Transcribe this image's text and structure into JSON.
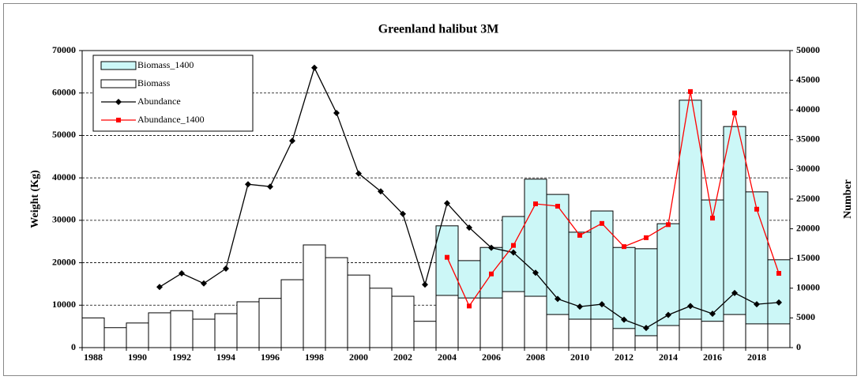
{
  "chart_data": {
    "type": "bar",
    "title": "Greenland halibut 3M",
    "y_label": "Weight (Kg)",
    "y2_label": "Number",
    "categories": [
      "1988",
      null,
      "1990",
      null,
      "1992",
      null,
      "1994",
      null,
      "1996",
      null,
      "1998",
      null,
      "2000",
      null,
      "2002",
      null,
      "2004",
      null,
      "2006",
      null,
      "2008",
      null,
      "2010",
      null,
      "2012",
      null,
      "2014",
      null,
      "2016",
      null,
      "2018",
      null
    ],
    "series": [
      {
        "name": "Biomass_1400",
        "type": "bar",
        "color": "#ccf7f7",
        "values": [
          null,
          null,
          null,
          null,
          null,
          null,
          null,
          null,
          null,
          null,
          null,
          null,
          null,
          null,
          null,
          null,
          28700,
          20500,
          23600,
          30900,
          39700,
          36100,
          27200,
          32200,
          23600,
          23300,
          29200,
          58300,
          34800,
          52100,
          36700,
          20700
        ]
      },
      {
        "name": "Biomass",
        "type": "bar",
        "color": "#ffffff",
        "values": [
          7000,
          4700,
          5800,
          8200,
          8700,
          6700,
          8000,
          10800,
          11600,
          16000,
          24200,
          21200,
          17100,
          14000,
          12100,
          6200,
          12300,
          11700,
          11700,
          13200,
          12100,
          7800,
          6700,
          6700,
          4500,
          2800,
          5200,
          6700,
          6200,
          7800,
          5600,
          5600
        ]
      },
      {
        "name": "Abundance",
        "type": "line",
        "axis": "y2",
        "marker": "diamond",
        "color": "#000000",
        "values": [
          null,
          null,
          null,
          10200,
          12500,
          10800,
          13300,
          27500,
          27100,
          34800,
          47100,
          39500,
          29300,
          26300,
          22500,
          10600,
          24300,
          20200,
          16800,
          16000,
          12600,
          8200,
          6900,
          7300,
          4700,
          3300,
          5500,
          7000,
          5700,
          9200,
          7300,
          7600
        ]
      },
      {
        "name": "Abundance_1400",
        "type": "line",
        "axis": "y2",
        "marker": "square",
        "color": "#ff0000",
        "values": [
          null,
          null,
          null,
          null,
          null,
          null,
          null,
          null,
          null,
          null,
          null,
          null,
          null,
          null,
          null,
          null,
          15200,
          7000,
          12400,
          17200,
          24200,
          23800,
          18900,
          20900,
          17000,
          18500,
          20700,
          43100,
          21800,
          39500,
          23300,
          12500
        ]
      }
    ],
    "ylim": [
      0,
      70000
    ],
    "yticks": [
      0,
      10000,
      20000,
      30000,
      40000,
      50000,
      60000,
      70000
    ],
    "y2lim": [
      0,
      50000
    ],
    "y2ticks": [
      0,
      5000,
      10000,
      15000,
      20000,
      25000,
      30000,
      35000,
      40000,
      45000,
      50000
    ],
    "grid": true,
    "legend": "upper-left"
  }
}
